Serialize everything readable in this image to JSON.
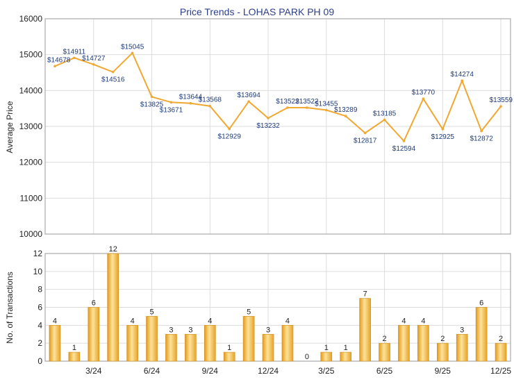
{
  "chart_data": [
    {
      "type": "line",
      "title": "Price Trends - LOHAS PARK PH 09",
      "xlabel": "",
      "ylabel": "Average Price",
      "ylim": [
        10000,
        16000
      ],
      "yticks": [
        10000,
        11000,
        12000,
        13000,
        14000,
        15000,
        16000
      ],
      "grid": true,
      "color": "#f0a830",
      "series": [
        {
          "name": "Average Price",
          "values": [
            14678,
            14911,
            14727,
            14516,
            15045,
            13825,
            13671,
            13644,
            13568,
            12929,
            13694,
            13232,
            13522,
            13522,
            13455,
            13289,
            12817,
            13185,
            12594,
            13770,
            12925,
            14274,
            12872,
            13559
          ],
          "labels": [
            "$14678",
            "$14911",
            "$14727",
            "$14516",
            "$15045",
            "$13825",
            "$13671",
            "$13644",
            "$13568",
            "$12929",
            "$13694",
            "$13232",
            "$13522",
            "$13522",
            "$13455",
            "$13289",
            "$12817",
            "$13185",
            "$12594",
            "$13770",
            "$12925",
            "$14274",
            "$12872",
            "$13559"
          ]
        }
      ]
    },
    {
      "type": "bar",
      "xlabel": "",
      "ylabel": "No. of Transactions",
      "ylim": [
        0,
        12
      ],
      "yticks": [
        0,
        2,
        4,
        6,
        8,
        10,
        12
      ],
      "xticks": [
        {
          "index": 2,
          "label": "3/24"
        },
        {
          "index": 5,
          "label": "6/24"
        },
        {
          "index": 8,
          "label": "9/24"
        },
        {
          "index": 11,
          "label": "12/24"
        },
        {
          "index": 14,
          "label": "3/25"
        },
        {
          "index": 17,
          "label": "6/25"
        },
        {
          "index": 20,
          "label": "9/25"
        },
        {
          "index": 23,
          "label": "12/25"
        }
      ],
      "grid": true,
      "color": "#f0a830",
      "series": [
        {
          "name": "No. of Transactions",
          "values": [
            4,
            1,
            6,
            12,
            4,
            5,
            3,
            3,
            4,
            1,
            5,
            3,
            4,
            0,
            1,
            1,
            7,
            2,
            4,
            4,
            2,
            3,
            6,
            2
          ]
        }
      ]
    }
  ]
}
